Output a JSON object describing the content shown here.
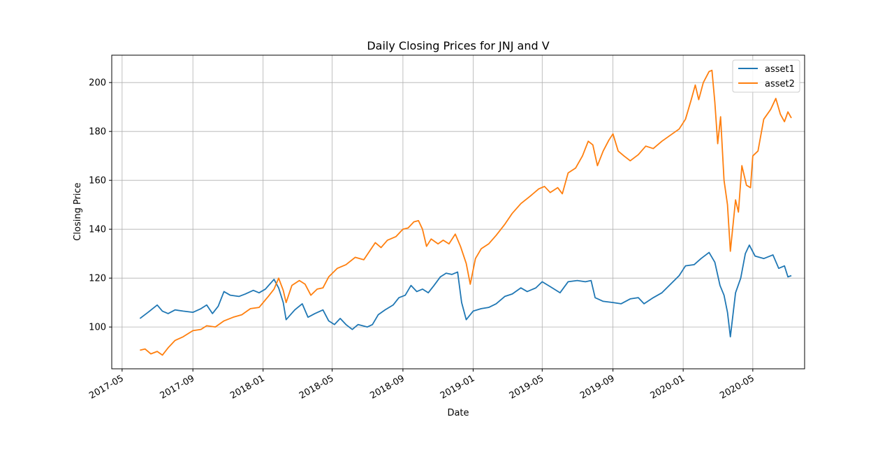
{
  "chart_data": {
    "type": "line",
    "title": "Daily Closing Prices for JNJ and V",
    "xlabel": "Date",
    "ylabel": "Closing Price",
    "grid": true,
    "legend_position": "top-right",
    "xlim": [
      "2017-04-13",
      "2020-07-30"
    ],
    "ylim": [
      82.9,
      211.2
    ],
    "x_ticks": [
      "2017-05",
      "2017-09",
      "2018-01",
      "2018-05",
      "2018-09",
      "2019-01",
      "2019-05",
      "2019-09",
      "2020-01",
      "2020-05"
    ],
    "y_ticks": [
      100,
      120,
      140,
      160,
      180,
      200
    ],
    "series": [
      {
        "name": "asset1",
        "color": "#1f77b4",
        "points": [
          [
            "2017-06-01",
            103.5
          ],
          [
            "2017-06-15",
            106.0
          ],
          [
            "2017-07-01",
            109.0
          ],
          [
            "2017-07-10",
            106.5
          ],
          [
            "2017-07-20",
            105.5
          ],
          [
            "2017-08-01",
            107.0
          ],
          [
            "2017-08-15",
            106.5
          ],
          [
            "2017-09-01",
            106.0
          ],
          [
            "2017-09-15",
            107.5
          ],
          [
            "2017-09-25",
            109.0
          ],
          [
            "2017-10-05",
            105.5
          ],
          [
            "2017-10-15",
            108.5
          ],
          [
            "2017-10-25",
            114.5
          ],
          [
            "2017-11-05",
            113.0
          ],
          [
            "2017-11-20",
            112.5
          ],
          [
            "2017-12-01",
            113.5
          ],
          [
            "2017-12-15",
            115.0
          ],
          [
            "2017-12-25",
            114.0
          ],
          [
            "2018-01-05",
            115.5
          ],
          [
            "2018-01-20",
            119.5
          ],
          [
            "2018-01-28",
            116.0
          ],
          [
            "2018-02-05",
            110.0
          ],
          [
            "2018-02-10",
            103.0
          ],
          [
            "2018-02-25",
            107.0
          ],
          [
            "2018-03-10",
            109.5
          ],
          [
            "2018-03-20",
            104.0
          ],
          [
            "2018-04-01",
            105.5
          ],
          [
            "2018-04-15",
            107.0
          ],
          [
            "2018-04-25",
            102.5
          ],
          [
            "2018-05-05",
            101.0
          ],
          [
            "2018-05-15",
            103.5
          ],
          [
            "2018-05-25",
            101.0
          ],
          [
            "2018-06-05",
            99.0
          ],
          [
            "2018-06-15",
            101.0
          ],
          [
            "2018-07-01",
            100.0
          ],
          [
            "2018-07-10",
            101.0
          ],
          [
            "2018-07-20",
            105.0
          ],
          [
            "2018-08-01",
            107.0
          ],
          [
            "2018-08-15",
            109.0
          ],
          [
            "2018-08-25",
            112.0
          ],
          [
            "2018-09-05",
            113.0
          ],
          [
            "2018-09-15",
            117.0
          ],
          [
            "2018-09-25",
            114.5
          ],
          [
            "2018-10-05",
            115.5
          ],
          [
            "2018-10-15",
            114.0
          ],
          [
            "2018-10-25",
            117.0
          ],
          [
            "2018-11-05",
            120.5
          ],
          [
            "2018-11-15",
            122.0
          ],
          [
            "2018-11-25",
            121.5
          ],
          [
            "2018-12-05",
            122.5
          ],
          [
            "2018-12-12",
            110.0
          ],
          [
            "2018-12-20",
            103.0
          ],
          [
            "2019-01-01",
            106.5
          ],
          [
            "2019-01-15",
            107.5
          ],
          [
            "2019-01-28",
            108.0
          ],
          [
            "2019-02-10",
            109.5
          ],
          [
            "2019-02-25",
            112.5
          ],
          [
            "2019-03-10",
            113.5
          ],
          [
            "2019-03-25",
            116.0
          ],
          [
            "2019-04-05",
            114.5
          ],
          [
            "2019-04-20",
            116.0
          ],
          [
            "2019-05-01",
            118.5
          ],
          [
            "2019-05-15",
            116.5
          ],
          [
            "2019-06-01",
            114.0
          ],
          [
            "2019-06-15",
            118.5
          ],
          [
            "2019-07-01",
            119.0
          ],
          [
            "2019-07-15",
            118.5
          ],
          [
            "2019-07-25",
            119.0
          ],
          [
            "2019-08-01",
            112.0
          ],
          [
            "2019-08-15",
            110.5
          ],
          [
            "2019-09-01",
            110.0
          ],
          [
            "2019-09-15",
            109.5
          ],
          [
            "2019-10-01",
            111.5
          ],
          [
            "2019-10-15",
            112.0
          ],
          [
            "2019-10-25",
            109.5
          ],
          [
            "2019-11-10",
            112.0
          ],
          [
            "2019-11-25",
            114.0
          ],
          [
            "2019-12-10",
            117.5
          ],
          [
            "2019-12-25",
            121.0
          ],
          [
            "2020-01-05",
            125.0
          ],
          [
            "2020-01-20",
            125.5
          ],
          [
            "2020-02-01",
            128.0
          ],
          [
            "2020-02-15",
            130.5
          ],
          [
            "2020-02-25",
            126.5
          ],
          [
            "2020-03-05",
            117.0
          ],
          [
            "2020-03-12",
            113.0
          ],
          [
            "2020-03-18",
            106.0
          ],
          [
            "2020-03-23",
            96.0
          ],
          [
            "2020-04-01",
            114.0
          ],
          [
            "2020-04-10",
            120.0
          ],
          [
            "2020-04-18",
            130.0
          ],
          [
            "2020-04-25",
            133.5
          ],
          [
            "2020-05-05",
            129.0
          ],
          [
            "2020-05-20",
            128.0
          ],
          [
            "2020-06-05",
            129.5
          ],
          [
            "2020-06-15",
            124.0
          ],
          [
            "2020-06-25",
            125.0
          ],
          [
            "2020-07-01",
            120.5
          ],
          [
            "2020-07-07",
            121.0
          ]
        ]
      },
      {
        "name": "asset2",
        "color": "#ff7f0e",
        "points": [
          [
            "2017-06-01",
            90.5
          ],
          [
            "2017-06-10",
            91.0
          ],
          [
            "2017-06-20",
            89.0
          ],
          [
            "2017-07-01",
            90.0
          ],
          [
            "2017-07-10",
            88.5
          ],
          [
            "2017-07-20",
            91.5
          ],
          [
            "2017-08-01",
            94.5
          ],
          [
            "2017-08-15",
            96.0
          ],
          [
            "2017-09-01",
            98.5
          ],
          [
            "2017-09-15",
            99.0
          ],
          [
            "2017-09-25",
            100.5
          ],
          [
            "2017-10-10",
            100.0
          ],
          [
            "2017-10-25",
            102.5
          ],
          [
            "2017-11-10",
            104.0
          ],
          [
            "2017-11-25",
            105.0
          ],
          [
            "2017-12-10",
            107.5
          ],
          [
            "2017-12-25",
            108.0
          ],
          [
            "2018-01-10",
            112.5
          ],
          [
            "2018-01-20",
            115.5
          ],
          [
            "2018-01-28",
            120.0
          ],
          [
            "2018-02-05",
            115.0
          ],
          [
            "2018-02-10",
            110.0
          ],
          [
            "2018-02-20",
            117.0
          ],
          [
            "2018-03-05",
            119.0
          ],
          [
            "2018-03-15",
            117.5
          ],
          [
            "2018-03-25",
            113.0
          ],
          [
            "2018-04-05",
            115.5
          ],
          [
            "2018-04-15",
            116.0
          ],
          [
            "2018-04-25",
            120.5
          ],
          [
            "2018-05-10",
            124.0
          ],
          [
            "2018-05-25",
            125.5
          ],
          [
            "2018-06-10",
            128.5
          ],
          [
            "2018-06-25",
            127.5
          ],
          [
            "2018-07-05",
            131.0
          ],
          [
            "2018-07-15",
            134.5
          ],
          [
            "2018-07-25",
            132.5
          ],
          [
            "2018-08-05",
            135.5
          ],
          [
            "2018-08-20",
            137.0
          ],
          [
            "2018-09-01",
            140.0
          ],
          [
            "2018-09-10",
            140.5
          ],
          [
            "2018-09-20",
            143.0
          ],
          [
            "2018-09-28",
            143.5
          ],
          [
            "2018-10-05",
            140.0
          ],
          [
            "2018-10-12",
            133.0
          ],
          [
            "2018-10-20",
            136.0
          ],
          [
            "2018-11-01",
            134.0
          ],
          [
            "2018-11-10",
            135.5
          ],
          [
            "2018-11-20",
            134.0
          ],
          [
            "2018-12-01",
            138.0
          ],
          [
            "2018-12-10",
            133.0
          ],
          [
            "2018-12-20",
            126.0
          ],
          [
            "2018-12-27",
            117.5
          ],
          [
            "2019-01-05",
            128.0
          ],
          [
            "2019-01-15",
            132.0
          ],
          [
            "2019-01-28",
            134.0
          ],
          [
            "2019-02-10",
            137.5
          ],
          [
            "2019-02-25",
            142.0
          ],
          [
            "2019-03-10",
            146.5
          ],
          [
            "2019-03-25",
            150.5
          ],
          [
            "2019-04-10",
            153.5
          ],
          [
            "2019-04-25",
            156.5
          ],
          [
            "2019-05-05",
            157.5
          ],
          [
            "2019-05-15",
            155.0
          ],
          [
            "2019-05-28",
            157.0
          ],
          [
            "2019-06-05",
            154.5
          ],
          [
            "2019-06-15",
            163.0
          ],
          [
            "2019-06-28",
            165.0
          ],
          [
            "2019-07-10",
            170.0
          ],
          [
            "2019-07-20",
            176.0
          ],
          [
            "2019-07-28",
            174.5
          ],
          [
            "2019-08-05",
            166.0
          ],
          [
            "2019-08-15",
            172.0
          ],
          [
            "2019-08-25",
            176.5
          ],
          [
            "2019-09-01",
            179.0
          ],
          [
            "2019-09-10",
            172.0
          ],
          [
            "2019-09-20",
            170.0
          ],
          [
            "2019-10-01",
            168.0
          ],
          [
            "2019-10-15",
            170.5
          ],
          [
            "2019-10-28",
            174.0
          ],
          [
            "2019-11-10",
            173.0
          ],
          [
            "2019-11-25",
            176.0
          ],
          [
            "2019-12-10",
            178.5
          ],
          [
            "2019-12-25",
            181.0
          ],
          [
            "2020-01-05",
            185.0
          ],
          [
            "2020-01-15",
            193.0
          ],
          [
            "2020-01-22",
            199.0
          ],
          [
            "2020-01-28",
            193.0
          ],
          [
            "2020-02-05",
            200.0
          ],
          [
            "2020-02-15",
            204.5
          ],
          [
            "2020-02-20",
            205.0
          ],
          [
            "2020-02-25",
            192.0
          ],
          [
            "2020-03-01",
            175.0
          ],
          [
            "2020-03-06",
            186.0
          ],
          [
            "2020-03-12",
            160.0
          ],
          [
            "2020-03-18",
            150.0
          ],
          [
            "2020-03-23",
            131.0
          ],
          [
            "2020-04-01",
            152.0
          ],
          [
            "2020-04-06",
            147.0
          ],
          [
            "2020-04-12",
            166.0
          ],
          [
            "2020-04-20",
            158.0
          ],
          [
            "2020-04-27",
            157.0
          ],
          [
            "2020-05-01",
            170.0
          ],
          [
            "2020-05-10",
            172.0
          ],
          [
            "2020-05-20",
            185.0
          ],
          [
            "2020-06-01",
            189.0
          ],
          [
            "2020-06-10",
            193.5
          ],
          [
            "2020-06-18",
            187.0
          ],
          [
            "2020-06-25",
            184.0
          ],
          [
            "2020-07-01",
            188.0
          ],
          [
            "2020-07-07",
            185.5
          ]
        ]
      }
    ]
  }
}
